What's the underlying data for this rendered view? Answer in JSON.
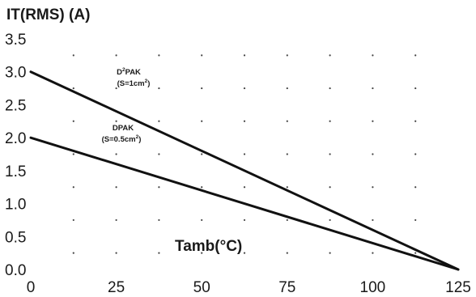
{
  "chart_data": {
    "type": "line",
    "ylabel": "IT(RMS) (A)",
    "xlabel": "Tamb(°C)",
    "xlim": [
      0,
      125
    ],
    "ylim": [
      0,
      3.5
    ],
    "x_ticks": [
      "0",
      "25",
      "50",
      "75",
      "100",
      "125"
    ],
    "y_ticks": [
      "0.0",
      "0.5",
      "1.0",
      "1.5",
      "2.0",
      "2.5",
      "3.0",
      "3.5"
    ],
    "grid": "dotted",
    "series": [
      {
        "name": "D²PAK (S=1cm²)",
        "label_line1": "D",
        "label_sup": "2",
        "label_line1_rest": "PAK",
        "label_line2": "(S=1cm",
        "label_line2_sup": "2",
        "label_line2_end": ")",
        "x": [
          0,
          125
        ],
        "y": [
          3.0,
          0.0
        ]
      },
      {
        "name": "DPAK (S=0.5cm²)",
        "label_line1": "DPAK",
        "label_line2": "(S=0.5cm",
        "label_line2_sup": "2",
        "label_line2_end": ")",
        "x": [
          0,
          125
        ],
        "y": [
          2.0,
          0.0
        ]
      }
    ]
  }
}
